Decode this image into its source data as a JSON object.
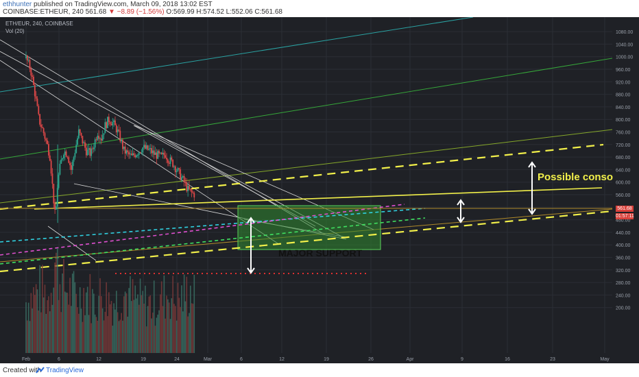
{
  "header": {
    "author": "ethhunter",
    "published_text": "published on TradingView.com, March 09, 2018 13:02 EST",
    "ohlc_prefix": "COINBASE:ETHEUR, 240  561.68",
    "change": "▼ −8.89 (−1.56%)",
    "ohlc_suffix": "O:569.99 H:574.52 L:552.06 C:561.68"
  },
  "legend": {
    "symbol_line": "ETH/EUR, 240, COINBASE",
    "volume_line": "Vol (20)"
  },
  "annotations": {
    "possible_conso": "Possible conso",
    "major_support": "MAJOR SUPPORT"
  },
  "price_tags": {
    "last": "561.68",
    "countdown": "01:57:11"
  },
  "footer": {
    "created_with": "Created with",
    "brand": "TradingView"
  },
  "colors": {
    "background": "#1f2126",
    "up_candle": "#2ca58d",
    "down_candle": "#e04848",
    "yellow": "#f2f04a",
    "support_zone": "#2f8a2f",
    "red_dots": "#e03030"
  },
  "chart_data": {
    "type": "candlestick",
    "symbol": "ETH/EUR",
    "interval": "240",
    "exchange": "COINBASE",
    "yaxis_ticks": [
      200,
      240,
      280,
      320,
      360,
      400,
      440,
      480,
      520,
      560,
      600,
      640,
      680,
      720,
      760,
      800,
      840,
      880,
      920,
      960,
      1000,
      1040,
      1080
    ],
    "ylim": [
      170,
      1085
    ],
    "xaxis_ticks": [
      "Feb",
      "6",
      "12",
      "19",
      "24",
      "Mar",
      "6",
      "12",
      "19",
      "26",
      "Apr",
      "9",
      "16",
      "23",
      "May"
    ],
    "last_price": 561.68,
    "price_path": [
      [
        0,
        995
      ],
      [
        0.6,
        960
      ],
      [
        1.2,
        880
      ],
      [
        1.7,
        800
      ],
      [
        2.3,
        760
      ],
      [
        2.8,
        720
      ],
      [
        3.2,
        680
      ],
      [
        3.6,
        560
      ],
      [
        3.9,
        480
      ],
      [
        4.2,
        600
      ],
      [
        4.6,
        660
      ],
      [
        5,
        700
      ],
      [
        5.5,
        690
      ],
      [
        6,
        640
      ],
      [
        6.5,
        700
      ],
      [
        7,
        760
      ],
      [
        7.5,
        730
      ],
      [
        8,
        700
      ],
      [
        8.6,
        690
      ],
      [
        9,
        720
      ],
      [
        9.5,
        760
      ],
      [
        10,
        740
      ],
      [
        10.5,
        780
      ],
      [
        11,
        800
      ],
      [
        11.5,
        790
      ],
      [
        12,
        770
      ],
      [
        12.5,
        740
      ],
      [
        13,
        700
      ],
      [
        13.5,
        690
      ],
      [
        14,
        680
      ],
      [
        14.5,
        690
      ],
      [
        15,
        700
      ],
      [
        15.5,
        710
      ],
      [
        16,
        705
      ],
      [
        16.5,
        700
      ],
      [
        17,
        690
      ],
      [
        17.5,
        685
      ],
      [
        18,
        680
      ],
      [
        18.5,
        690
      ],
      [
        19,
        670
      ],
      [
        19.5,
        660
      ],
      [
        20,
        640
      ],
      [
        20.5,
        620
      ],
      [
        21,
        600
      ],
      [
        21.5,
        575
      ],
      [
        22,
        565
      ],
      [
        22.4,
        561.68
      ]
    ],
    "volume_path": [
      [
        0,
        230
      ],
      [
        1,
        250
      ],
      [
        2,
        270
      ],
      [
        3,
        240
      ],
      [
        3.9,
        380
      ],
      [
        4.5,
        300
      ],
      [
        5,
        280
      ],
      [
        6,
        260
      ],
      [
        7,
        240
      ],
      [
        8,
        270
      ],
      [
        9,
        230
      ],
      [
        10,
        250
      ],
      [
        11,
        240
      ],
      [
        12,
        230
      ],
      [
        13,
        260
      ],
      [
        14,
        240
      ],
      [
        15,
        230
      ],
      [
        16,
        220
      ],
      [
        17,
        225
      ],
      [
        18,
        240
      ],
      [
        19,
        260
      ],
      [
        20,
        230
      ],
      [
        21,
        250
      ],
      [
        22,
        270
      ],
      [
        22.4,
        240
      ]
    ],
    "support_zone": {
      "x_from_day": 20.4,
      "x_to_day": 28.3,
      "price_from": 385,
      "price_to": 525
    }
  }
}
